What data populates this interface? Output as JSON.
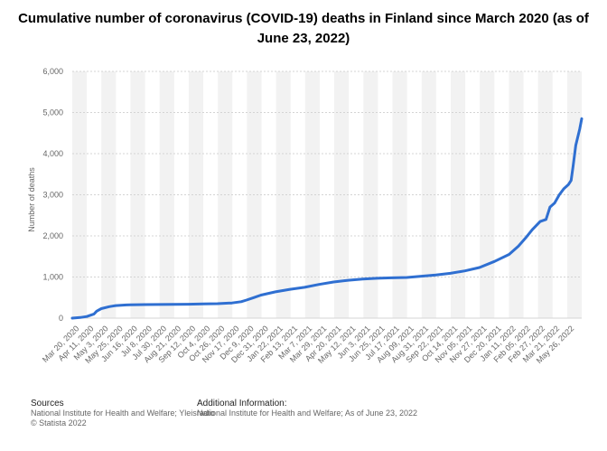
{
  "page_title": "Cumulative number of coronavirus (COVID-19) deaths in Finland since March 2020 (as of June 23, 2022)",
  "footer": {
    "sources_heading": "Sources",
    "sources_text": "National Institute for Health and Welfare; Yleisradio",
    "copyright": "© Statista 2022",
    "info_heading": "Additional Information:",
    "info_text": "National Institute for Health and Welfare; As of June 23, 2022"
  },
  "colors": {
    "line": "#2f6fd1",
    "band": "#f2f2f2",
    "grid": "#d4d4d4",
    "axis_text": "#666666"
  },
  "chart_data": {
    "type": "line",
    "ylabel": "Number of deaths",
    "ylim": [
      0,
      6000
    ],
    "yticks": [
      "0",
      "1,000",
      "2,000",
      "3,000",
      "4,000",
      "5,000",
      "6,000"
    ],
    "grid": true,
    "x_tick_labels": [
      "Mar 20, 2020",
      "Apr 11, 2020",
      "May 3, 2020",
      "May 25, 2020",
      "Jun 16, 2020",
      "Jul 8, 2020",
      "Jul 30, 2020",
      "Aug 21, 2020",
      "Sep 12, 2020",
      "Oct 4, 2020",
      "Oct 26, 2020",
      "Nov 17, 2020",
      "Dec 9, 2020",
      "Dec 31, 2020",
      "Jan 22, 2021",
      "Feb 13, 2021",
      "Mar 7, 2021",
      "Mar 29, 2021",
      "Apr 20, 2021",
      "May 12, 2021",
      "Jun 3, 2021",
      "Jun 25, 2021",
      "Jul 17, 2021",
      "Aug 09, 2021",
      "Aug 31, 2021",
      "Sep 22, 2021",
      "Oct 14, 2021",
      "Nov 05, 2021",
      "Nov 27, 2021",
      "Dec 20, 2021",
      "Jan 11, 2022",
      "Feb 05, 2022",
      "Feb 27, 2022",
      "Mar 21, 2022",
      "May 26, 2022"
    ],
    "series": [
      {
        "points": [
          [
            "2020-03-20",
            0
          ],
          [
            "2020-04-01",
            15
          ],
          [
            "2020-04-11",
            40
          ],
          [
            "2020-04-22",
            100
          ],
          [
            "2020-04-26",
            170
          ],
          [
            "2020-05-03",
            230
          ],
          [
            "2020-05-15",
            280
          ],
          [
            "2020-05-25",
            305
          ],
          [
            "2020-06-10",
            320
          ],
          [
            "2020-06-16",
            325
          ],
          [
            "2020-07-08",
            329
          ],
          [
            "2020-07-30",
            331
          ],
          [
            "2020-08-21",
            334
          ],
          [
            "2020-09-12",
            339
          ],
          [
            "2020-10-04",
            345
          ],
          [
            "2020-10-26",
            352
          ],
          [
            "2020-11-17",
            370
          ],
          [
            "2020-12-01",
            400
          ],
          [
            "2020-12-09",
            440
          ],
          [
            "2020-12-20",
            500
          ],
          [
            "2020-12-31",
            560
          ],
          [
            "2021-01-22",
            640
          ],
          [
            "2021-02-13",
            700
          ],
          [
            "2021-03-07",
            750
          ],
          [
            "2021-03-29",
            820
          ],
          [
            "2021-04-20",
            880
          ],
          [
            "2021-05-12",
            920
          ],
          [
            "2021-06-03",
            950
          ],
          [
            "2021-06-25",
            970
          ],
          [
            "2021-07-17",
            980
          ],
          [
            "2021-08-09",
            990
          ],
          [
            "2021-08-31",
            1020
          ],
          [
            "2021-09-22",
            1050
          ],
          [
            "2021-10-14",
            1090
          ],
          [
            "2021-11-05",
            1150
          ],
          [
            "2021-11-27",
            1230
          ],
          [
            "2021-12-20",
            1380
          ],
          [
            "2022-01-11",
            1550
          ],
          [
            "2022-01-25",
            1750
          ],
          [
            "2022-02-05",
            1950
          ],
          [
            "2022-02-15",
            2150
          ],
          [
            "2022-02-27",
            2350
          ],
          [
            "2022-03-08",
            2400
          ],
          [
            "2022-03-14",
            2700
          ],
          [
            "2022-03-21",
            2800
          ],
          [
            "2022-03-28",
            3000
          ],
          [
            "2022-04-04",
            3150
          ],
          [
            "2022-04-11",
            3250
          ],
          [
            "2022-04-15",
            3350
          ],
          [
            "2022-04-18",
            3700
          ],
          [
            "2022-04-22",
            4200
          ],
          [
            "2022-04-28",
            4600
          ],
          [
            "2022-05-01",
            4850
          ]
        ]
      }
    ]
  }
}
